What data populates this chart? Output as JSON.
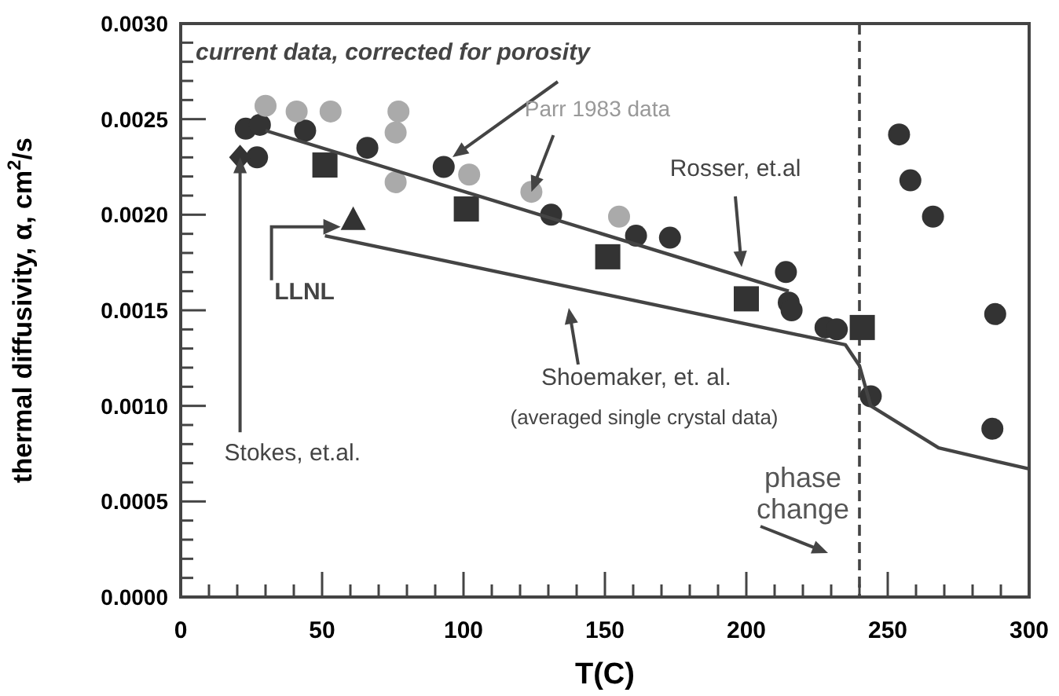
{
  "chart_data": {
    "type": "scatter",
    "xlabel": "T(C)",
    "ylabel": "thermal diffusivity, α, cm$^{2}$/s",
    "xlim": [
      0,
      300
    ],
    "xticks": [
      0,
      50,
      100,
      150,
      200,
      250,
      300
    ],
    "ylim": [
      0,
      0.003
    ],
    "yticks": [
      {
        "value": 0,
        "label": "0.0000"
      },
      {
        "value": 0.0005,
        "label": "0.0005"
      },
      {
        "value": 0.001,
        "label": "0.0010"
      },
      {
        "value": 0.0015,
        "label": "0.0015"
      },
      {
        "value": 0.002,
        "label": "0.0020"
      },
      {
        "value": 0.0025,
        "label": "0.0025"
      },
      {
        "value": 0.003,
        "label": "0.0030"
      }
    ],
    "grid": false,
    "series": [
      {
        "marker": "circle",
        "color": "#333333",
        "x": [
          23,
          28,
          44,
          66,
          93,
          131,
          27,
          161,
          173,
          214,
          215,
          216,
          228,
          232,
          244,
          254,
          258,
          266,
          288,
          287
        ],
        "values": [
          0.00245,
          0.00247,
          0.00244,
          0.00235,
          0.00225,
          0.002,
          0.0023,
          0.00189,
          0.00188,
          0.0017,
          0.00154,
          0.0015,
          0.00141,
          0.0014,
          0.00105,
          0.00242,
          0.00218,
          0.00199,
          0.00148,
          0.00088
        ]
      },
      {
        "marker": "circle",
        "color": "#aaaaaa",
        "x": [
          30,
          41,
          53,
          77,
          76,
          102,
          76,
          124,
          155
        ],
        "values": [
          0.00257,
          0.00254,
          0.00254,
          0.00254,
          0.00243,
          0.00221,
          0.00217,
          0.00212,
          0.00199
        ]
      },
      {
        "marker": "square",
        "color": "#333333",
        "x": [
          51,
          101,
          151,
          200,
          241
        ],
        "values": [
          0.00226,
          0.00203,
          0.00178,
          0.00156,
          0.00141
        ]
      },
      {
        "marker": "diamond",
        "color": "#333333",
        "x": [
          21
        ],
        "values": [
          0.0023
        ]
      },
      {
        "marker": "triangle",
        "color": "#333333",
        "x": [
          61
        ],
        "values": [
          0.00197
        ]
      },
      {
        "type": "line",
        "marker": "none",
        "line_style": "solid",
        "color": "#444444",
        "x": [
          30,
          215
        ],
        "values": [
          0.00244,
          0.0016
        ]
      },
      {
        "type": "line",
        "marker": "none",
        "line_style": "solid",
        "color": "#444444",
        "x": [
          51,
          235,
          240,
          244,
          268,
          300
        ],
        "values": [
          0.00189,
          0.00132,
          0.00121,
          0.001,
          0.00078,
          0.00067
        ]
      }
    ],
    "ref_lines": [
      {
        "axis": "x",
        "value": 240,
        "label": "phase change",
        "line_style": "dashed",
        "color": "#444444"
      }
    ],
    "annotations": [
      "current data, corrected for porosity",
      {
        "text": "Parr 1983 data",
        "x": 124,
        "y": 0.00212
      },
      "Rosser, et.al",
      {
        "text": "LLNL",
        "x": 61,
        "y": 0.00197
      },
      "Shoemaker, et. al.",
      "(averaged single crystal data)",
      {
        "text": "Stokes, et.al.",
        "x": 21,
        "y": 0.0023
      }
    ]
  }
}
